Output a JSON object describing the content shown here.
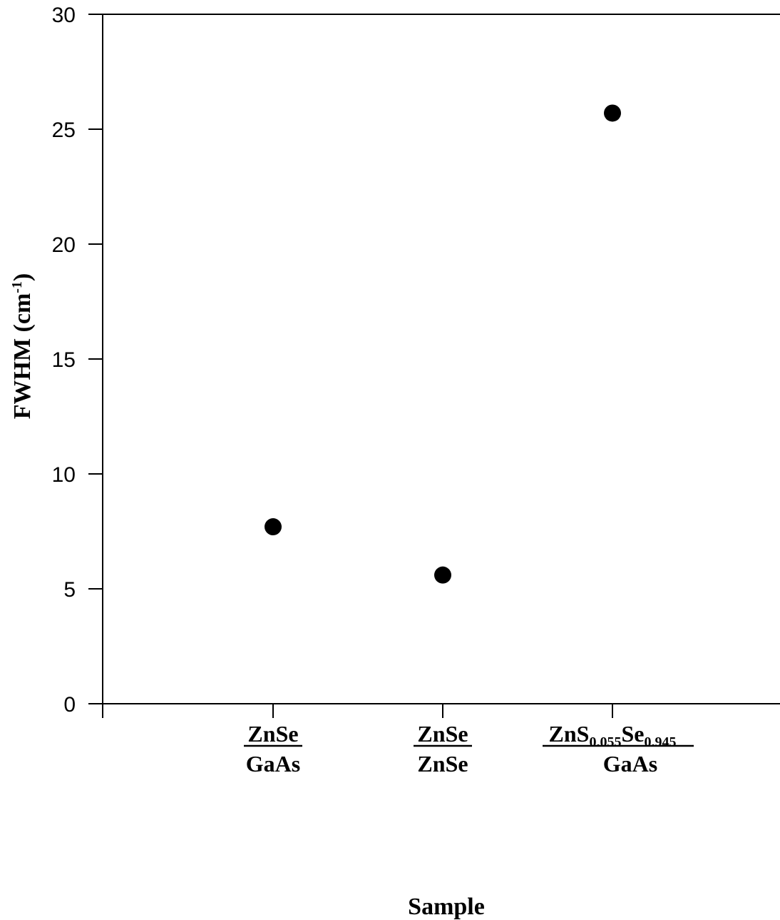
{
  "chart_data": {
    "type": "scatter",
    "xlabel": "Sample",
    "ylabel": "FWHM  (cm",
    "ylabel_sup": "-1",
    "ylabel_end": ")",
    "ylim": [
      0,
      30
    ],
    "yticks": [
      0,
      5,
      10,
      15,
      20,
      25,
      30
    ],
    "ytick_labels": [
      "0",
      "5",
      "10",
      "15",
      "20",
      "25",
      "30"
    ],
    "grid": false,
    "categories": [
      {
        "numerator": "ZnSe",
        "denominator": "GaAs"
      },
      {
        "numerator": "ZnSe",
        "denominator": "ZnSe"
      },
      {
        "numerator_parts": [
          {
            "text": "ZnS",
            "sub": false
          },
          {
            "text": "0.055",
            "sub": true
          },
          {
            "text": "Se",
            "sub": false
          },
          {
            "text": "0.945",
            "sub": true
          }
        ],
        "denominator": "GaAs"
      }
    ],
    "values": [
      7.7,
      5.6,
      25.7
    ],
    "marker_color": "#000000"
  }
}
